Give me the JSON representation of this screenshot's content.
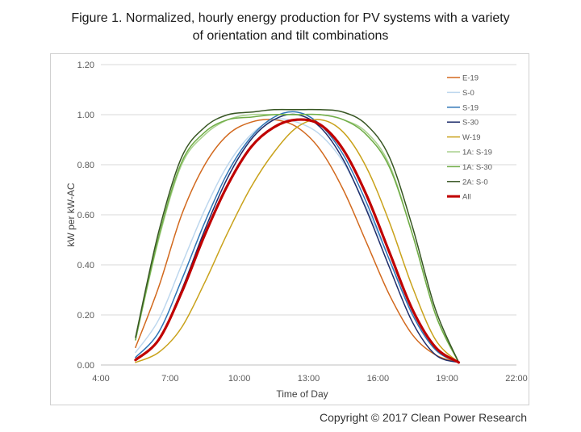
{
  "title_line1": "Figure 1. Normalized, hourly energy production for PV systems with a variety",
  "title_line2": "of orientation and tilt combinations",
  "copyright": "Copyright © 2017 Clean Power Research",
  "chart_data": {
    "type": "line",
    "xlabel": "Time of Day",
    "ylabel": "kW per kW-AC",
    "xlim": [
      4,
      22
    ],
    "ylim": [
      0,
      1.2
    ],
    "x_ticks": [
      4,
      7,
      10,
      13,
      16,
      19,
      22
    ],
    "x_tick_labels": [
      "4:00",
      "7:00",
      "10:00",
      "13:00",
      "16:00",
      "19:00",
      "22:00"
    ],
    "y_ticks": [
      0,
      0.2,
      0.4,
      0.6,
      0.8,
      1.0,
      1.2
    ],
    "y_tick_labels": [
      "0.00",
      "0.20",
      "0.40",
      "0.60",
      "0.80",
      "1.00",
      "1.20"
    ],
    "grid": "horizontal",
    "legend": "top-right",
    "series": [
      {
        "name": "E-19",
        "color": "#d2691e",
        "x": [
          5.5,
          6.5,
          7.5,
          8.5,
          9.5,
          10.5,
          11.5,
          12.5,
          13.5,
          14.5,
          15.5,
          16.5,
          17.5,
          18.5,
          19.5
        ],
        "y": [
          0.07,
          0.31,
          0.6,
          0.8,
          0.92,
          0.97,
          0.98,
          0.95,
          0.86,
          0.7,
          0.49,
          0.28,
          0.12,
          0.04,
          0.01
        ]
      },
      {
        "name": "S-0",
        "color": "#bdd7ee",
        "x": [
          5.5,
          6.5,
          7.5,
          8.5,
          9.5,
          10.5,
          11.5,
          12.5,
          13.5,
          14.5,
          15.5,
          16.5,
          17.5,
          18.5,
          19.5
        ],
        "y": [
          0.05,
          0.18,
          0.4,
          0.62,
          0.8,
          0.92,
          0.98,
          0.97,
          0.92,
          0.81,
          0.63,
          0.42,
          0.21,
          0.07,
          0.01
        ]
      },
      {
        "name": "S-19",
        "color": "#2e75b6",
        "x": [
          5.5,
          6.5,
          7.5,
          8.5,
          9.5,
          10.5,
          11.5,
          12.5,
          13.5,
          14.5,
          15.5,
          16.5,
          17.5,
          18.5,
          19.5
        ],
        "y": [
          0.03,
          0.13,
          0.34,
          0.57,
          0.77,
          0.91,
          0.99,
          1.01,
          0.96,
          0.84,
          0.65,
          0.42,
          0.2,
          0.06,
          0.01
        ]
      },
      {
        "name": "S-30",
        "color": "#1f2d6b",
        "x": [
          5.5,
          6.5,
          7.5,
          8.5,
          9.5,
          10.5,
          11.5,
          12.5,
          13.5,
          14.5,
          15.5,
          16.5,
          17.5,
          18.5,
          19.5
        ],
        "y": [
          0.02,
          0.1,
          0.3,
          0.54,
          0.75,
          0.9,
          0.98,
          1.0,
          0.95,
          0.82,
          0.62,
          0.39,
          0.17,
          0.04,
          0.01
        ]
      },
      {
        "name": "W-19",
        "color": "#c9a21b",
        "x": [
          5.5,
          6.5,
          7.5,
          8.5,
          9.5,
          10.5,
          11.5,
          12.5,
          13.5,
          14.5,
          15.5,
          16.5,
          17.5,
          18.5,
          19.5
        ],
        "y": [
          0.01,
          0.05,
          0.15,
          0.33,
          0.53,
          0.71,
          0.85,
          0.95,
          0.98,
          0.93,
          0.79,
          0.57,
          0.31,
          0.1,
          0.01
        ]
      },
      {
        "name": "1A: S-19",
        "color": "#a9d18e",
        "x": [
          5.5,
          6.5,
          7.5,
          8.5,
          9.5,
          10.5,
          11.5,
          12.5,
          13.5,
          14.5,
          15.5,
          16.5,
          17.5,
          18.5,
          19.5
        ],
        "y": [
          0.1,
          0.5,
          0.8,
          0.92,
          0.98,
          1.0,
          1.0,
          1.0,
          1.0,
          0.98,
          0.93,
          0.8,
          0.52,
          0.2,
          0.01
        ]
      },
      {
        "name": "1A: S-30",
        "color": "#70ad47",
        "x": [
          5.5,
          6.5,
          7.5,
          8.5,
          9.5,
          10.5,
          11.5,
          12.5,
          13.5,
          14.5,
          15.5,
          16.5,
          17.5,
          18.5,
          19.5
        ],
        "y": [
          0.1,
          0.51,
          0.81,
          0.93,
          0.98,
          0.99,
          1.0,
          1.0,
          1.0,
          0.98,
          0.92,
          0.79,
          0.52,
          0.2,
          0.01
        ]
      },
      {
        "name": "2A: S-0",
        "color": "#375623",
        "x": [
          5.5,
          6.5,
          7.5,
          8.5,
          9.5,
          10.5,
          11.5,
          12.5,
          13.5,
          14.5,
          15.5,
          16.5,
          17.5,
          18.5,
          19.5
        ],
        "y": [
          0.11,
          0.53,
          0.83,
          0.95,
          1.0,
          1.01,
          1.02,
          1.02,
          1.02,
          1.01,
          0.96,
          0.83,
          0.55,
          0.22,
          0.01
        ]
      },
      {
        "name": "All",
        "color": "#c00000",
        "bold": true,
        "x": [
          5.5,
          6.5,
          7.5,
          8.5,
          9.5,
          10.5,
          11.5,
          12.5,
          13.5,
          14.5,
          15.5,
          16.5,
          17.5,
          18.5,
          19.5
        ],
        "y": [
          0.02,
          0.1,
          0.29,
          0.52,
          0.72,
          0.87,
          0.95,
          0.98,
          0.96,
          0.86,
          0.68,
          0.45,
          0.22,
          0.07,
          0.01
        ]
      }
    ]
  }
}
